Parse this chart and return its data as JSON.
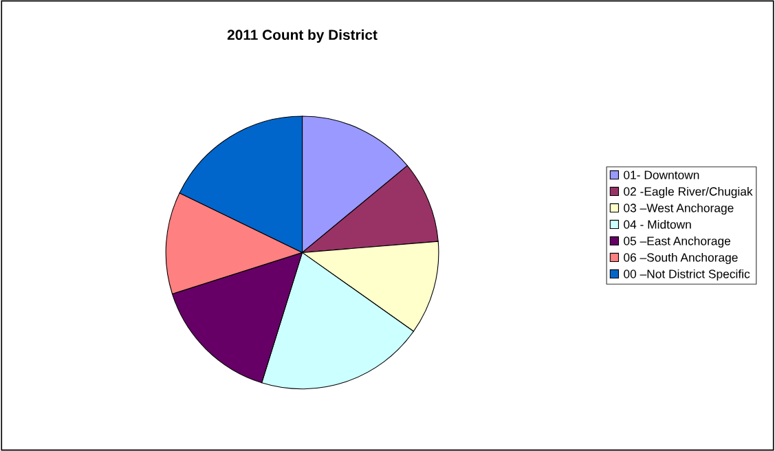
{
  "chart_data": {
    "type": "pie",
    "title": "2011 Count by District",
    "categories": [
      "01- Downtown",
      "02 -Eagle River/Chugiak",
      "03 –West Anchorage",
      "04 - Midtown",
      "05 –East Anchorage",
      "06 –South Anchorage",
      "00 –Not District Specific"
    ],
    "values": [
      14.0,
      9.7,
      11.1,
      20.0,
      15.3,
      12.1,
      17.8
    ],
    "colors": [
      "#9999ff",
      "#993366",
      "#ffffcc",
      "#ccffff",
      "#660066",
      "#ff8080",
      "#0066cc"
    ],
    "legend": "right"
  }
}
